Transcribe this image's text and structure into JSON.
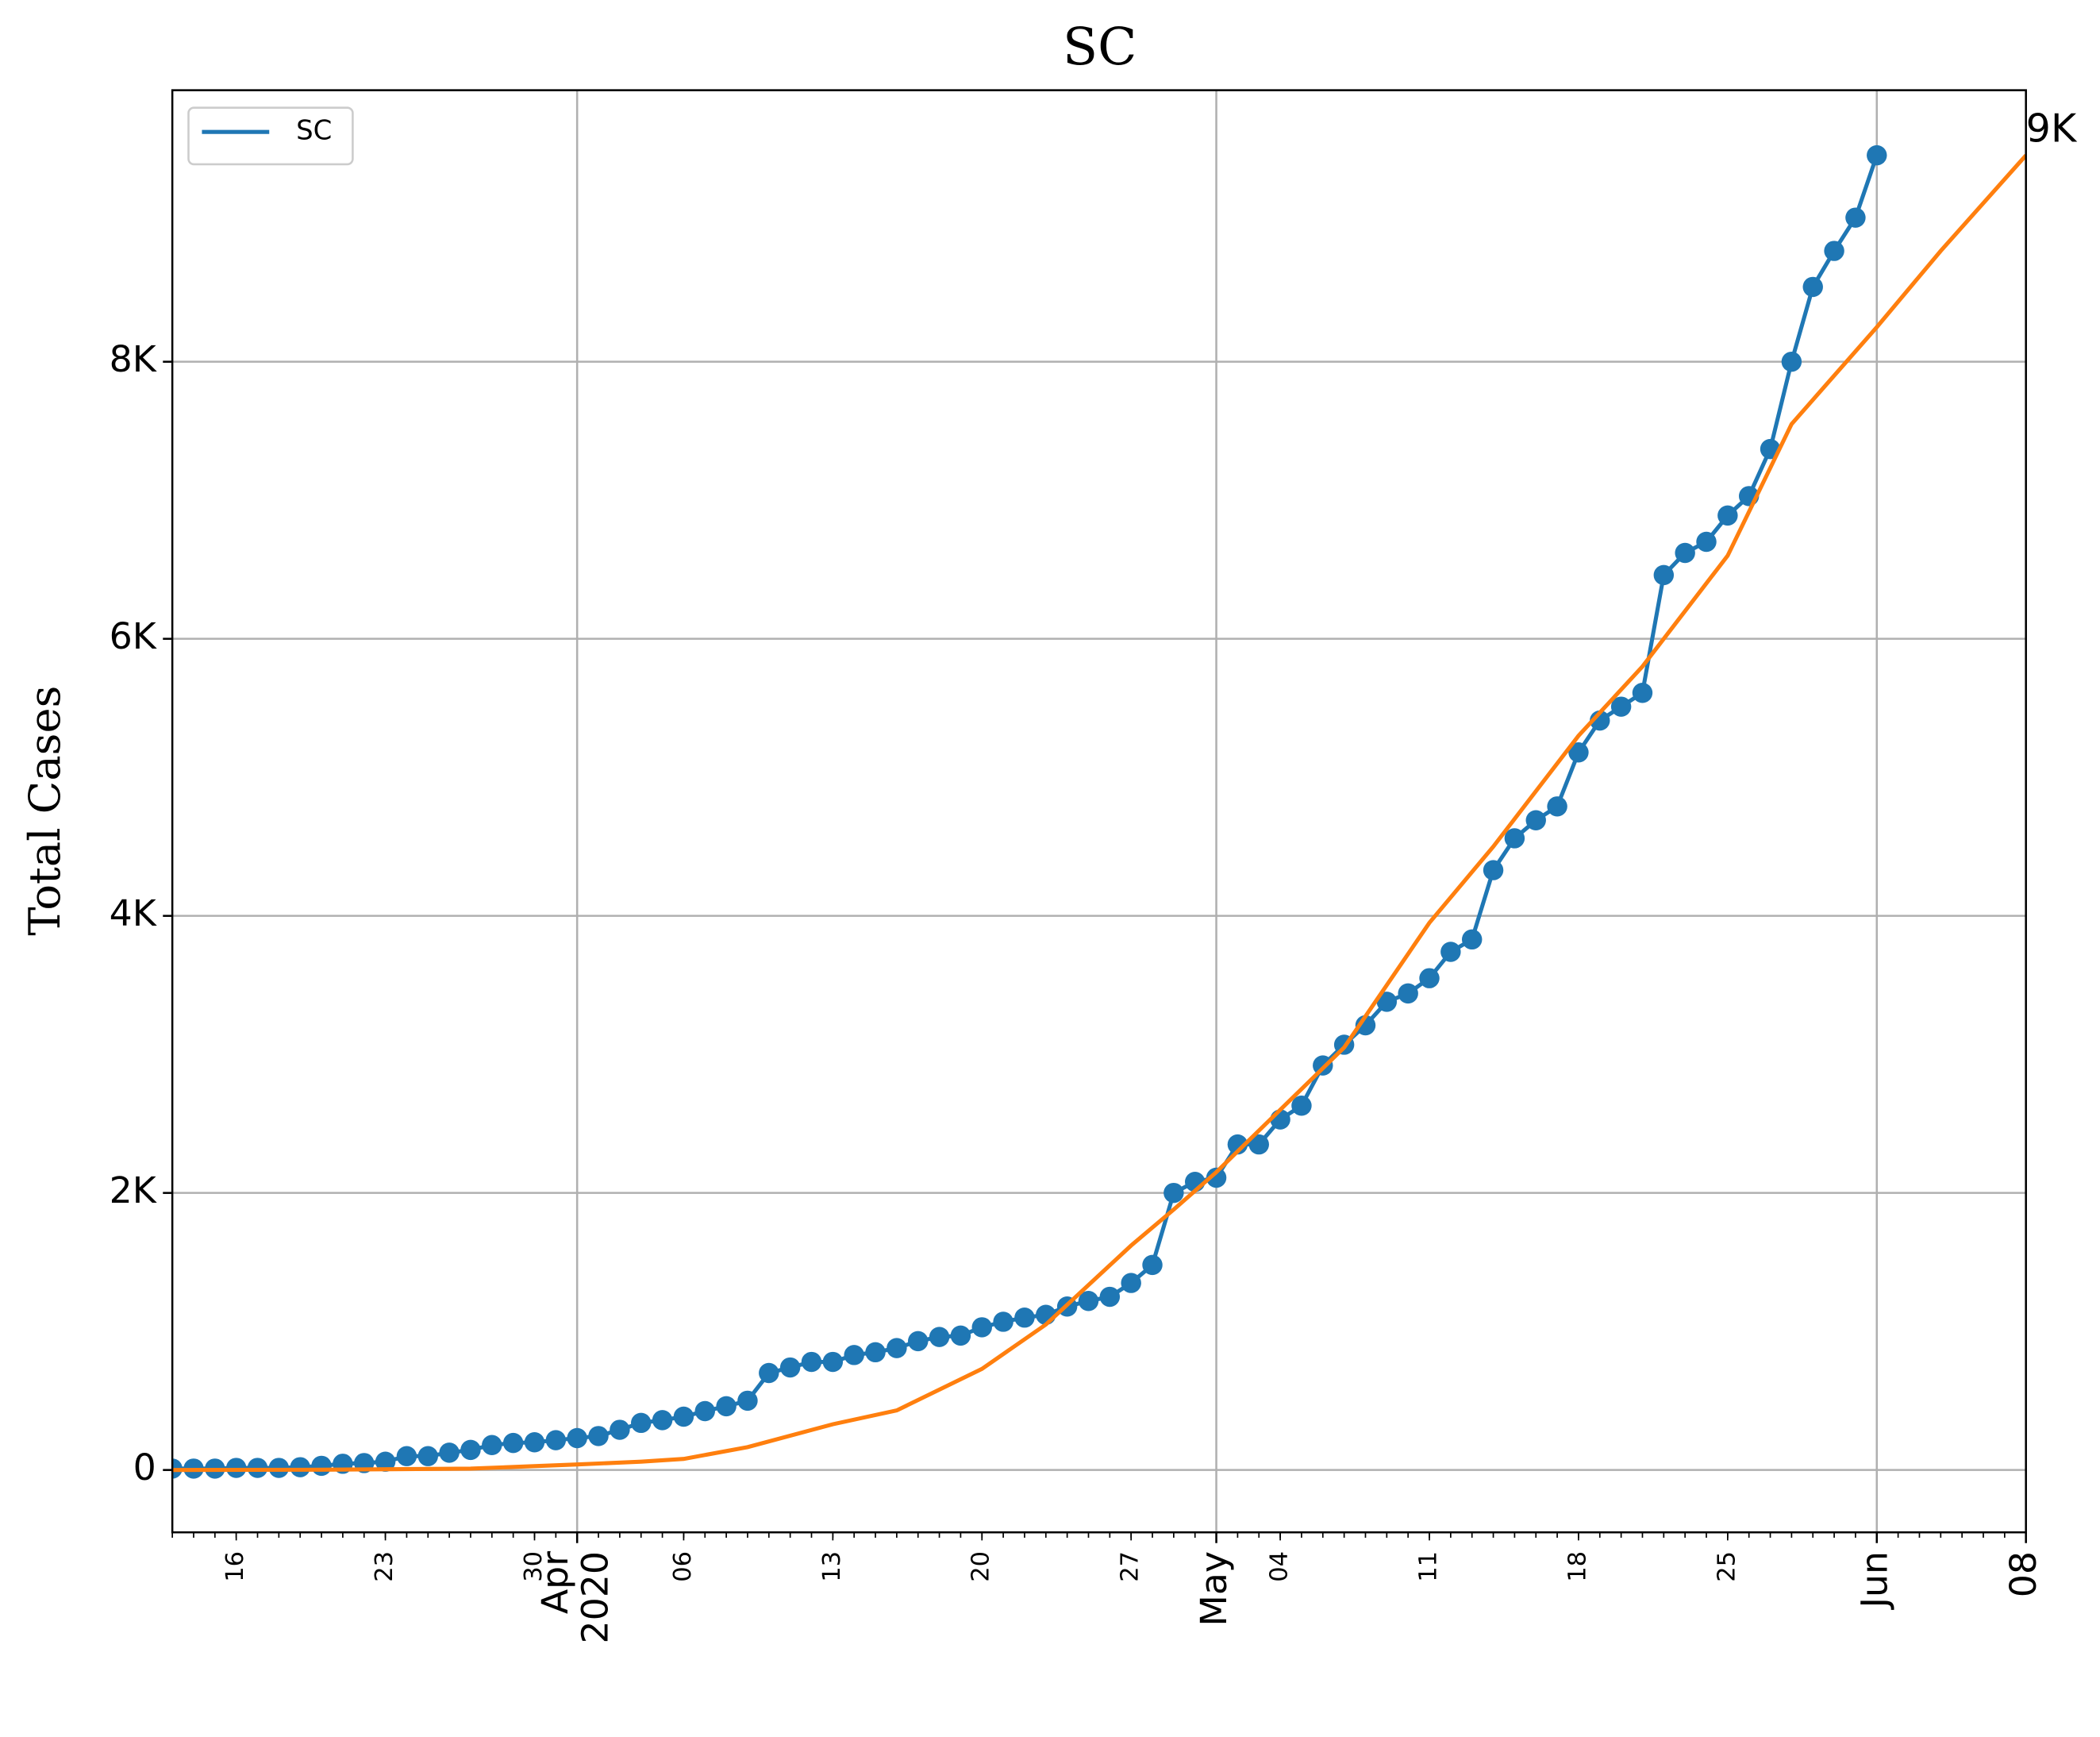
{
  "chart_data": {
    "type": "line",
    "title": "SC",
    "y_label": "Total Cases",
    "xlim": [
      "2020-03-13",
      "2020-06-08"
    ],
    "ylim": [
      -450,
      9960
    ],
    "yticks": [
      0,
      {
        "value": 2000,
        "label": "2K"
      },
      {
        "value": 4000,
        "label": "4K"
      },
      {
        "value": 6000,
        "label": "6K"
      },
      {
        "value": 8000,
        "label": "8K"
      }
    ],
    "xticks": [
      {
        "value": "2020-04-01",
        "label": "Apr\n2020"
      },
      {
        "value": "2020-05-01",
        "label": "May"
      },
      {
        "value": "2020-06-01",
        "label": "Jun"
      },
      {
        "value": "2020-06-08",
        "label": "08"
      }
    ],
    "xticks_minor": [
      {
        "value": "2020-03-16",
        "label": "16"
      },
      {
        "value": "2020-03-23",
        "label": "23"
      },
      {
        "value": "2020-03-30",
        "label": "30"
      },
      {
        "value": "2020-04-06",
        "label": "06"
      },
      {
        "value": "2020-04-13",
        "label": "13"
      },
      {
        "value": "2020-04-20",
        "label": "20"
      },
      {
        "value": "2020-04-27",
        "label": "27"
      },
      {
        "value": "2020-05-04",
        "label": "04"
      },
      {
        "value": "2020-05-11",
        "label": "11"
      },
      {
        "value": "2020-05-18",
        "label": "18"
      },
      {
        "value": "2020-05-25",
        "label": "25"
      }
    ],
    "grid": true,
    "legend": "upper left",
    "annotation": {
      "text": "9K",
      "x": "2020-06-08",
      "y": 9490
    },
    "series": [
      {
        "name": "SC",
        "color": "#1f77b4",
        "marker": true,
        "x": [
          "2020-03-13",
          "2020-03-14",
          "2020-03-15",
          "2020-03-16",
          "2020-03-17",
          "2020-03-18",
          "2020-03-19",
          "2020-03-20",
          "2020-03-21",
          "2020-03-22",
          "2020-03-23",
          "2020-03-24",
          "2020-03-25",
          "2020-03-26",
          "2020-03-27",
          "2020-03-28",
          "2020-03-29",
          "2020-03-30",
          "2020-03-31",
          "2020-04-01",
          "2020-04-02",
          "2020-04-03",
          "2020-04-04",
          "2020-04-05",
          "2020-04-06",
          "2020-04-07",
          "2020-04-08",
          "2020-04-09",
          "2020-04-10",
          "2020-04-11",
          "2020-04-12",
          "2020-04-13",
          "2020-04-14",
          "2020-04-15",
          "2020-04-16",
          "2020-04-17",
          "2020-04-18",
          "2020-04-19",
          "2020-04-20",
          "2020-04-21",
          "2020-04-22",
          "2020-04-23",
          "2020-04-24",
          "2020-04-25",
          "2020-04-26",
          "2020-04-27",
          "2020-04-28",
          "2020-04-29",
          "2020-04-30",
          "2020-05-01",
          "2020-05-02",
          "2020-05-03",
          "2020-05-04",
          "2020-05-05",
          "2020-05-06",
          "2020-05-07",
          "2020-05-08",
          "2020-05-09",
          "2020-05-10",
          "2020-05-11",
          "2020-05-12",
          "2020-05-13",
          "2020-05-14",
          "2020-05-15",
          "2020-05-16",
          "2020-05-17",
          "2020-05-18",
          "2020-05-19",
          "2020-05-20",
          "2020-05-21",
          "2020-05-22",
          "2020-05-23",
          "2020-05-24",
          "2020-05-25",
          "2020-05-26",
          "2020-05-27",
          "2020-05-28",
          "2020-05-29",
          "2020-05-30",
          "2020-05-31",
          "2020-06-01"
        ],
        "values": [
          10,
          10,
          10,
          15,
          15,
          15,
          20,
          30,
          45,
          50,
          60,
          100,
          100,
          125,
          145,
          180,
          195,
          200,
          215,
          230,
          245,
          290,
          340,
          360,
          385,
          425,
          460,
          500,
          700,
          740,
          780,
          780,
          830,
          850,
          880,
          930,
          960,
          970,
          1030,
          1070,
          1100,
          1120,
          1180,
          1220,
          1250,
          1350,
          1480,
          2000,
          2080,
          2110,
          2350,
          2350,
          2530,
          2630,
          2920,
          3070,
          3210,
          3380,
          3440,
          3550,
          3740,
          3830,
          4330,
          4560,
          4690,
          4790,
          5180,
          5410,
          5510,
          5610,
          6460,
          6620,
          6700,
          6890,
          7030,
          7370,
          8000,
          8540,
          8800,
          9040,
          9490
        ]
      },
      {
        "color": "#ff7f0e",
        "marker": false,
        "x": [
          "2020-03-13",
          "2020-03-20",
          "2020-03-27",
          "2020-04-01",
          "2020-04-04",
          "2020-04-06",
          "2020-04-09",
          "2020-04-13",
          "2020-04-16",
          "2020-04-20",
          "2020-04-23",
          "2020-04-27",
          "2020-04-29",
          "2020-05-01",
          "2020-05-04",
          "2020-05-07",
          "2020-05-11",
          "2020-05-14",
          "2020-05-18",
          "2020-05-21",
          "2020-05-25",
          "2020-05-28",
          "2020-06-01",
          "2020-06-04",
          "2020-06-08"
        ],
        "values": [
          0,
          2,
          10,
          40,
          60,
          80,
          165,
          330,
          430,
          730,
          1050,
          1620,
          1880,
          2150,
          2600,
          3050,
          3950,
          4500,
          5300,
          5800,
          6600,
          7550,
          8250,
          8800,
          9490
        ]
      }
    ]
  }
}
